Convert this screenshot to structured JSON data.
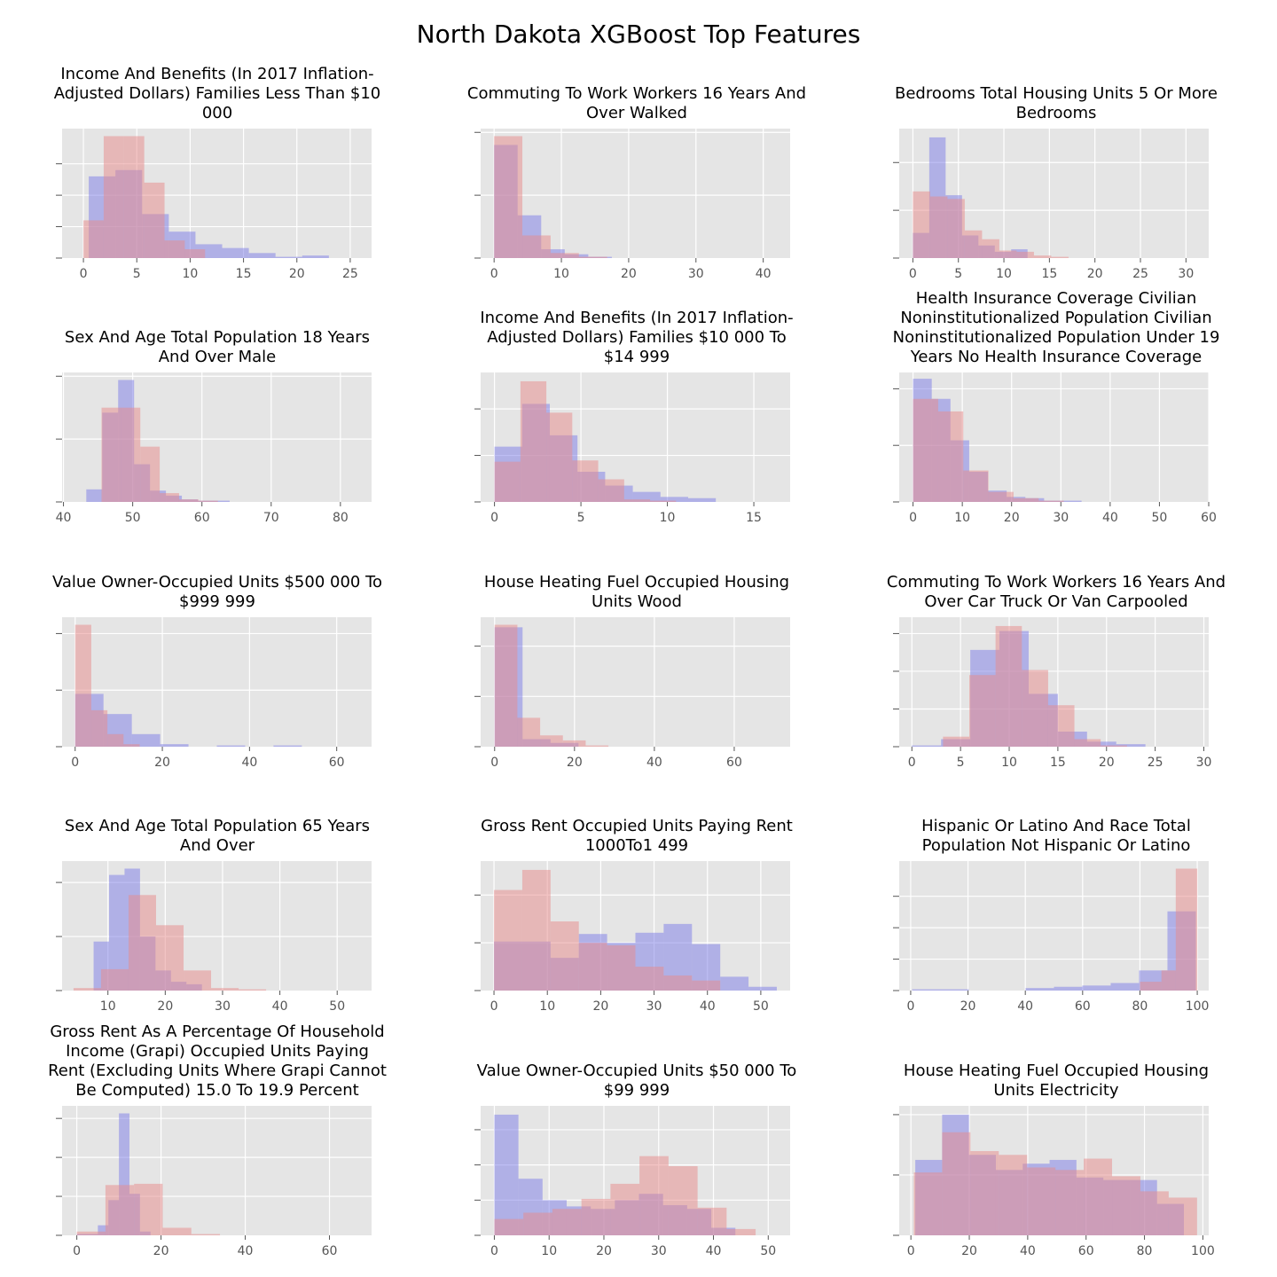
{
  "title": "North Dakota XGBoost Top Features",
  "colors": {
    "red": "#e24a33",
    "blue": "#348abd",
    "blue_fill": "#7b7be8",
    "red_fill": "#e88a8a",
    "bg": "#e5e5e5",
    "grid": "#ffffff"
  },
  "chart_data": [
    {
      "type": "bar",
      "title": "Income And Benefits (In 2017 Inflation-Adjusted Dollars) Families Less Than $10 000",
      "title_lines": [
        "Income And Benefits (In 2017 Inflation-",
        "Adjusted Dollars) Families Less Than $10",
        "000"
      ],
      "xlim": [
        -2,
        27
      ],
      "xticks": [
        0,
        5,
        10,
        15,
        20,
        25
      ],
      "ymax": 1.0,
      "yticks": [
        0.25,
        0.5,
        0.75
      ],
      "series": [
        {
          "name": "",
          "color": "red",
          "edges": [
            0,
            1.9,
            3.8,
            5.7,
            7.6,
            9.5,
            11.4
          ],
          "heights": [
            0.3,
            0.97,
            0.97,
            0.6,
            0.14,
            0.07
          ]
        },
        {
          "name": "",
          "color": "blue",
          "edges": [
            0.5,
            3,
            5.5,
            8,
            10.5,
            13,
            15.5,
            18,
            20.5,
            23,
            25.5
          ],
          "heights": [
            0.65,
            0.7,
            0.35,
            0.21,
            0.11,
            0.08,
            0.04,
            0.01,
            0.02,
            0
          ]
        }
      ]
    },
    {
      "type": "bar",
      "title": "Commuting To Work Workers 16 Years And Over Walked",
      "title_lines": [
        "Commuting To Work Workers 16 Years And",
        "Over Walked"
      ],
      "xlim": [
        -2,
        44
      ],
      "xticks": [
        0,
        10,
        20,
        30,
        40
      ],
      "ymax": 1.0,
      "yticks": [
        0.5,
        1.0
      ],
      "series": [
        {
          "name": "",
          "color": "red",
          "edges": [
            0,
            4.2,
            8.4,
            12.6,
            16.8
          ],
          "heights": [
            0.97,
            0.18,
            0.04,
            0.01
          ]
        },
        {
          "name": "",
          "color": "blue",
          "edges": [
            0,
            3.5,
            7,
            10.5,
            14,
            17.5,
            21,
            24.5,
            28
          ],
          "heights": [
            0.9,
            0.34,
            0.07,
            0.03,
            0.01,
            0,
            0,
            0
          ]
        }
      ]
    },
    {
      "type": "bar",
      "title": "Bedrooms Total Housing Units 5 Or More Bedrooms",
      "title_lines": [
        "Bedrooms Total Housing Units 5 Or More",
        "Bedrooms"
      ],
      "xlim": [
        -1.5,
        32.5
      ],
      "xticks": [
        0,
        5,
        10,
        15,
        20,
        25,
        30
      ],
      "ymax": 1.0,
      "yticks": [
        0.38,
        0.76
      ],
      "series": [
        {
          "name": "",
          "color": "red",
          "edges": [
            0,
            1.9,
            3.8,
            5.7,
            7.6,
            9.5,
            11.4,
            13.3,
            15.2,
            17.1
          ],
          "heights": [
            0.53,
            0.49,
            0.47,
            0.22,
            0.15,
            0.06,
            0.05,
            0.02,
            0.01
          ]
        },
        {
          "name": "",
          "color": "blue",
          "edges": [
            0,
            1.8,
            3.6,
            5.4,
            7.2,
            9,
            10.8,
            12.6
          ],
          "heights": [
            0.2,
            0.96,
            0.5,
            0.18,
            0.1,
            0.05,
            0.07
          ]
        }
      ]
    },
    {
      "type": "bar",
      "title": "Sex And Age Total Population 18 Years And Over Male",
      "title_lines": [
        "Sex And Age Total Population 18 Years",
        "And Over Male"
      ],
      "xlim": [
        39.8,
        84.5
      ],
      "xticks": [
        40,
        50,
        60,
        70,
        80
      ],
      "ymax": 1.0,
      "yticks": [
        0.5,
        1.0
      ],
      "series": [
        {
          "name": "",
          "color": "red",
          "edges": [
            45.5,
            48.3,
            51.1,
            53.9,
            56.7,
            59.5,
            62.3
          ],
          "heights": [
            0.75,
            0.75,
            0.44,
            0.07,
            0.02,
            0.01
          ]
        },
        {
          "name": "",
          "color": "blue",
          "edges": [
            43.3,
            45.6,
            47.9,
            50.2,
            52.5,
            54.8,
            57.1,
            59.4,
            61.7,
            64
          ],
          "heights": [
            0.1,
            0.71,
            0.97,
            0.3,
            0.09,
            0.05,
            0.02,
            0.01,
            0.01
          ]
        }
      ]
    },
    {
      "type": "bar",
      "title": "Income And Benefits (In 2017 Inflation-Adjusted Dollars) Families $10 000 To $14 999",
      "title_lines": [
        "Income And Benefits (In 2017 Inflation-",
        "Adjusted Dollars) Families $10 000 To",
        "$14 999"
      ],
      "xlim": [
        -0.8,
        17.1
      ],
      "xticks": [
        0,
        5,
        10,
        15
      ],
      "ymax": 1.0,
      "yticks": [
        0.37,
        0.74
      ],
      "series": [
        {
          "name": "",
          "color": "red",
          "edges": [
            0,
            1.5,
            3,
            4.5,
            6,
            7.5,
            9,
            10.5,
            12
          ],
          "heights": [
            0.32,
            0.96,
            0.71,
            0.33,
            0.18,
            0.02,
            0.01,
            0
          ]
        },
        {
          "name": "",
          "color": "blue",
          "edges": [
            0,
            1.6,
            3.2,
            4.8,
            6.4,
            8,
            9.6,
            11.2,
            12.8
          ],
          "heights": [
            0.44,
            0.78,
            0.53,
            0.24,
            0.13,
            0.08,
            0.04,
            0.03
          ]
        }
      ]
    },
    {
      "type": "bar",
      "title": "Health Insurance Coverage Civilian Noninstitutionalized Population Civilian Noninstitutionalized Population Under 19 Years No Health Insurance Coverage",
      "title_lines": [
        "Health Insurance Coverage Civilian",
        "Noninstitutionalized Population Civilian",
        "Noninstitutionalized Population Under 19",
        "Years No Health Insurance Coverage"
      ],
      "xlim": [
        -2.8,
        60
      ],
      "xticks": [
        0,
        10,
        20,
        30,
        40,
        50,
        60
      ],
      "ymax": 1.0,
      "yticks": [
        0.45,
        0.9
      ],
      "series": [
        {
          "name": "",
          "color": "red",
          "edges": [
            0,
            5.1,
            10.2,
            15.3,
            20.4,
            25.5,
            30.6
          ],
          "heights": [
            0.82,
            0.72,
            0.25,
            0.08,
            0.03,
            0.01
          ]
        },
        {
          "name": "",
          "color": "blue",
          "edges": [
            0,
            3.8,
            7.6,
            11.4,
            15.2,
            19,
            22.8,
            26.6,
            30.4,
            34.2
          ],
          "heights": [
            0.98,
            0.82,
            0.49,
            0.24,
            0.09,
            0.04,
            0.03,
            0.01,
            0.01
          ]
        }
      ]
    },
    {
      "type": "bar",
      "title": "Value Owner-Occupied Units $500 000 To $999 999",
      "title_lines": [
        "Value Owner-Occupied Units $500 000 To",
        "$999 999"
      ],
      "xlim": [
        -3,
        68
      ],
      "xticks": [
        0,
        20,
        40,
        60
      ],
      "ymax": 1.0,
      "yticks": [
        0.45,
        0.9
      ],
      "series": [
        {
          "name": "",
          "color": "red",
          "edges": [
            0,
            3.7,
            7.4,
            11.1,
            14.8
          ],
          "heights": [
            0.97,
            0.29,
            0.1,
            0.02
          ]
        },
        {
          "name": "",
          "color": "blue",
          "edges": [
            0,
            6.5,
            13,
            19.5,
            26,
            32.5,
            39,
            45.5,
            52
          ],
          "heights": [
            0.42,
            0.26,
            0.1,
            0.02,
            0,
            0.01,
            0,
            0.01
          ]
        }
      ]
    },
    {
      "type": "bar",
      "title": "House Heating Fuel Occupied Housing Units Wood",
      "title_lines": [
        "House Heating Fuel Occupied Housing",
        "Units Wood"
      ],
      "xlim": [
        -3.5,
        74
      ],
      "xticks": [
        0,
        20,
        40,
        60
      ],
      "ymax": 1.0,
      "yticks": [
        0.4,
        0.8
      ],
      "series": [
        {
          "name": "",
          "color": "red",
          "edges": [
            0,
            5.7,
            11.4,
            17.1,
            22.8,
            28.5
          ],
          "heights": [
            0.97,
            0.23,
            0.09,
            0.05,
            0.01
          ]
        },
        {
          "name": "",
          "color": "blue",
          "edges": [
            0,
            7,
            14,
            21,
            28
          ],
          "heights": [
            0.95,
            0.06,
            0.03,
            0
          ]
        }
      ]
    },
    {
      "type": "bar",
      "title": "Commuting To Work Workers 16 Years And Over Car Truck Or Van Carpooled",
      "title_lines": [
        "Commuting To Work Workers 16 Years And",
        "Over Car Truck Or Van Carpooled"
      ],
      "xlim": [
        -1.3,
        30.5
      ],
      "xticks": [
        0,
        5,
        10,
        15,
        20,
        25,
        30
      ],
      "ymax": 1.0,
      "yticks": [
        0.3,
        0.6,
        0.9
      ],
      "series": [
        {
          "name": "",
          "color": "red",
          "edges": [
            3.2,
            5.9,
            8.6,
            11.3,
            14,
            16.7,
            19.4,
            22.1
          ],
          "heights": [
            0.08,
            0.57,
            0.96,
            0.61,
            0.33,
            0.06,
            0.01
          ]
        },
        {
          "name": "",
          "color": "blue",
          "edges": [
            0,
            3,
            6,
            9,
            12,
            15,
            18,
            21,
            24
          ],
          "heights": [
            0.01,
            0.06,
            0.77,
            0.92,
            0.42,
            0.12,
            0.04,
            0.02
          ]
        }
      ]
    },
    {
      "type": "bar",
      "title": "Sex And Age Total Population 65 Years And Over",
      "title_lines": [
        "Sex And Age Total Population 65 Years",
        "And Over"
      ],
      "xlim": [
        2,
        56
      ],
      "xticks": [
        10,
        20,
        30,
        40,
        50
      ],
      "ymax": 1.0,
      "yticks": [
        0.43,
        0.86
      ],
      "series": [
        {
          "name": "",
          "color": "red",
          "edges": [
            4,
            8.8,
            13.6,
            18.4,
            23.2,
            28,
            32.8,
            37.6
          ],
          "heights": [
            0.02,
            0.17,
            0.76,
            0.52,
            0.16,
            0.02,
            0.01
          ]
        },
        {
          "name": "",
          "color": "blue",
          "edges": [
            7.5,
            10.2,
            12.9,
            15.6,
            18.3,
            21,
            23.7,
            26.4
          ],
          "heights": [
            0.39,
            0.92,
            0.97,
            0.43,
            0.16,
            0.07,
            0.05
          ]
        }
      ]
    },
    {
      "type": "bar",
      "title": "Gross Rent Occupied Units Paying Rent 1000To1 499",
      "title_lines": [
        "Gross Rent Occupied Units Paying Rent",
        "1000To1 499"
      ],
      "xlim": [
        -2.5,
        55.5
      ],
      "xticks": [
        0,
        10,
        20,
        30,
        40,
        50
      ],
      "ymax": 1.0,
      "yticks": [
        0.38,
        0.76
      ],
      "series": [
        {
          "name": "",
          "color": "red",
          "edges": [
            0,
            5.3,
            10.6,
            15.9,
            21.2,
            26.5,
            31.8,
            37.1,
            42.4
          ],
          "heights": [
            0.8,
            0.96,
            0.55,
            0.38,
            0.36,
            0.19,
            0.12,
            0.08
          ]
        },
        {
          "name": "",
          "color": "blue",
          "edges": [
            0,
            5.3,
            10.6,
            15.9,
            21.2,
            26.5,
            31.8,
            37.1,
            42.4,
            47.7,
            53
          ],
          "heights": [
            0.39,
            0.39,
            0.26,
            0.45,
            0.38,
            0.46,
            0.53,
            0.37,
            0.11,
            0.03
          ]
        }
      ]
    },
    {
      "type": "bar",
      "title": "Hispanic Or Latino And Race Total Population Not Hispanic Or Latino",
      "title_lines": [
        "Hispanic Or Latino And Race Total",
        "Population Not Hispanic Or Latino"
      ],
      "xlim": [
        -4,
        104
      ],
      "xticks": [
        0,
        20,
        40,
        60,
        80,
        100
      ],
      "ymax": 1.0,
      "yticks": [
        0.25,
        0.5,
        0.75
      ],
      "series": [
        {
          "name": "",
          "color": "red",
          "edges": [
            80,
            87.5,
            92.5,
            100
          ],
          "heights": [
            0.07,
            0.16,
            0.97
          ]
        },
        {
          "name": "",
          "color": "blue",
          "edges": [
            0.5,
            10.4,
            20.3,
            30.2,
            40.1,
            50,
            59.9,
            69.8,
            79.7,
            89.6,
            99.5
          ],
          "heights": [
            0.01,
            0.01,
            0,
            0,
            0.02,
            0.03,
            0.04,
            0.06,
            0.16,
            0.63
          ]
        }
      ]
    },
    {
      "type": "bar",
      "title": "Gross Rent As A Percentage Of Household Income (Grapi) Occupied Units Paying Rent (Excluding Units Where Grapi Cannot Be Computed) 15.0 To 19.9 Percent",
      "title_lines": [
        "Gross Rent As A Percentage Of Household",
        "Income (Grapi) Occupied Units Paying",
        "Rent (Excluding Units Where Grapi Cannot",
        "Be Computed) 15.0 To 19.9 Percent"
      ],
      "xlim": [
        -3.5,
        70
      ],
      "xticks": [
        0,
        20,
        40,
        60
      ],
      "ymax": 1.0,
      "yticks": [
        0.31,
        0.62,
        0.93
      ],
      "series": [
        {
          "name": "",
          "color": "red",
          "edges": [
            0,
            6.8,
            13.6,
            20.4,
            27.2,
            34
          ],
          "heights": [
            0.03,
            0.4,
            0.41,
            0.06,
            0.01
          ]
        },
        {
          "name": "",
          "color": "blue",
          "edges": [
            0,
            5,
            7.5,
            10,
            12.5,
            15,
            17.5
          ],
          "heights": [
            0.01,
            0.08,
            0.28,
            0.97,
            0.33,
            0.03
          ]
        }
      ]
    },
    {
      "type": "bar",
      "title": "Value Owner-Occupied Units $50 000 To $99 999",
      "title_lines": [
        "Value Owner-Occupied Units $50 000 To",
        "$99 999"
      ],
      "xlim": [
        -2.5,
        54
      ],
      "xticks": [
        0,
        10,
        20,
        30,
        40,
        50
      ],
      "ymax": 1.0,
      "yticks": [
        0.28,
        0.56,
        0.84
      ],
      "series": [
        {
          "name": "",
          "color": "red",
          "edges": [
            0,
            5.3,
            10.6,
            15.9,
            21.2,
            26.5,
            31.8,
            37.1,
            42.4,
            47.7
          ],
          "heights": [
            0.13,
            0.18,
            0.21,
            0.29,
            0.41,
            0.63,
            0.55,
            0.22,
            0.05
          ]
        },
        {
          "name": "",
          "color": "blue",
          "edges": [
            0,
            4.4,
            8.8,
            13.2,
            17.6,
            22,
            26.4,
            30.8,
            35.2,
            39.6,
            44
          ],
          "heights": [
            0.96,
            0.45,
            0.28,
            0.23,
            0.21,
            0.28,
            0.33,
            0.24,
            0.21,
            0.06
          ]
        }
      ]
    },
    {
      "type": "bar",
      "title": "House Heating Fuel Occupied Housing Units Electricity",
      "title_lines": [
        "House Heating Fuel Occupied Housing",
        "Units Electricity"
      ],
      "xlim": [
        -4,
        102
      ],
      "xticks": [
        0,
        20,
        40,
        60,
        80,
        100
      ],
      "ymax": 1.0,
      "yticks": [
        0.48,
        0.96
      ],
      "series": [
        {
          "name": "",
          "color": "red",
          "edges": [
            1,
            10.7,
            20.4,
            30.1,
            39.8,
            49.5,
            59.2,
            68.9,
            78.6,
            88.3,
            98
          ],
          "heights": [
            0.5,
            0.82,
            0.67,
            0.64,
            0.54,
            0.52,
            0.61,
            0.47,
            0.35,
            0.3
          ]
        },
        {
          "name": "",
          "color": "blue",
          "edges": [
            1.5,
            10.7,
            19.9,
            29.1,
            38.3,
            47.5,
            56.7,
            65.9,
            75.1,
            84.3,
            93.5
          ],
          "heights": [
            0.6,
            0.96,
            0.64,
            0.52,
            0.57,
            0.6,
            0.46,
            0.44,
            0.44,
            0.25
          ]
        }
      ]
    }
  ]
}
